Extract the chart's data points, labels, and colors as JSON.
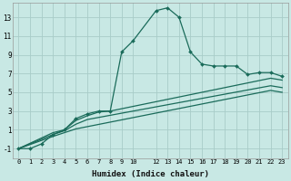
{
  "xlabel": "Humidex (Indice chaleur)",
  "bg_color": "#c8e8e4",
  "grid_color": "#a8ccc8",
  "line_color": "#1a6b5a",
  "xlim": [
    -0.5,
    23.5
  ],
  "ylim": [
    -2.0,
    14.5
  ],
  "xticks": [
    0,
    1,
    2,
    3,
    4,
    5,
    6,
    7,
    8,
    9,
    10,
    12,
    13,
    14,
    15,
    16,
    17,
    18,
    19,
    20,
    21,
    22,
    23
  ],
  "yticks": [
    -1,
    1,
    3,
    5,
    7,
    9,
    11,
    13
  ],
  "s1_x": [
    0,
    1,
    2,
    3,
    4,
    5,
    6,
    7,
    8,
    9,
    10,
    12,
    13,
    14,
    15,
    16,
    17,
    18,
    19,
    20,
    21,
    22,
    23
  ],
  "s1_y": [
    -1,
    -1,
    -0.5,
    0.5,
    1.0,
    2.2,
    2.7,
    3.0,
    3.0,
    9.3,
    10.5,
    13.7,
    14.0,
    13.0,
    9.3,
    8.0,
    7.8,
    7.8,
    7.8,
    6.9,
    7.1,
    7.1,
    6.7
  ],
  "s2_x": [
    0,
    3,
    4,
    5,
    6,
    7,
    8,
    22,
    23
  ],
  "s2_y": [
    -1,
    0.7,
    1.0,
    2.0,
    2.5,
    2.9,
    3.0,
    6.5,
    6.3
  ],
  "s3_x": [
    0,
    3,
    4,
    5,
    6,
    22,
    23
  ],
  "s3_y": [
    -1,
    0.5,
    0.9,
    1.6,
    2.1,
    5.7,
    5.5
  ],
  "s4_x": [
    0,
    3,
    4,
    5,
    22,
    23
  ],
  "s4_y": [
    -1,
    0.3,
    0.7,
    1.1,
    5.2,
    5.0
  ]
}
